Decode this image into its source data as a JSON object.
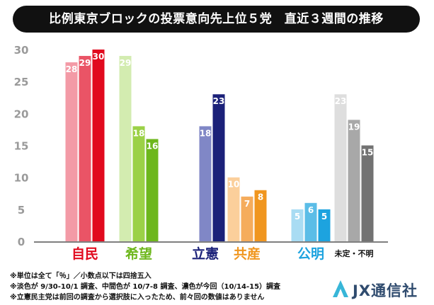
{
  "title": "比例東京ブロックの投票意向先上位５党　直近３週間の推移",
  "chart_data": {
    "type": "bar",
    "ylim": [
      0,
      30
    ],
    "yticks": [
      0,
      5,
      10,
      15,
      20,
      25,
      30
    ],
    "grid": false,
    "groups": [
      {
        "label": "自民",
        "values": [
          28,
          29,
          30
        ],
        "colors": [
          "#f39aa6",
          "#ea5466",
          "#e10a1e"
        ],
        "label_color": "#e10a1e"
      },
      {
        "label": "希望",
        "values": [
          29,
          18,
          16
        ],
        "colors": [
          "#d3ecb0",
          "#9bd147",
          "#6db71c"
        ],
        "label_color": "#6db71c"
      },
      {
        "label": "立憲",
        "values": [
          null,
          18,
          23
        ],
        "colors": [
          "#b8bfe0",
          "#8087c6",
          "#1b2179"
        ],
        "label_color": "#1b2179"
      },
      {
        "label": "共産",
        "values": [
          10,
          7,
          8
        ],
        "colors": [
          "#fbcf9b",
          "#f5ac5c",
          "#f0961f"
        ],
        "label_color": "#f0961f"
      },
      {
        "label": "公明",
        "values": [
          5,
          6,
          5
        ],
        "colors": [
          "#a9dcf3",
          "#5bbde7",
          "#1da3df"
        ],
        "label_color": "#1da3df"
      },
      {
        "label": "未定・不明",
        "values": [
          23,
          19,
          15
        ],
        "colors": [
          "#dedede",
          "#a8a8a8",
          "#727272"
        ],
        "label_color": "#111111"
      }
    ]
  },
  "notes": [
    "※単位は全て「％」／小数点以下は四捨五入",
    "※淡色が 9/30-10/1 調査、中間色が 10/7-8 調査、濃色が今回（10/14-15）調査",
    "※立憲民主党は前回の調査から選択肢に入ったため、前々回の数値はありません"
  ],
  "logo": {
    "text": "JX通信社",
    "color": "#2f4b6e",
    "accent": "#38b6d8"
  }
}
